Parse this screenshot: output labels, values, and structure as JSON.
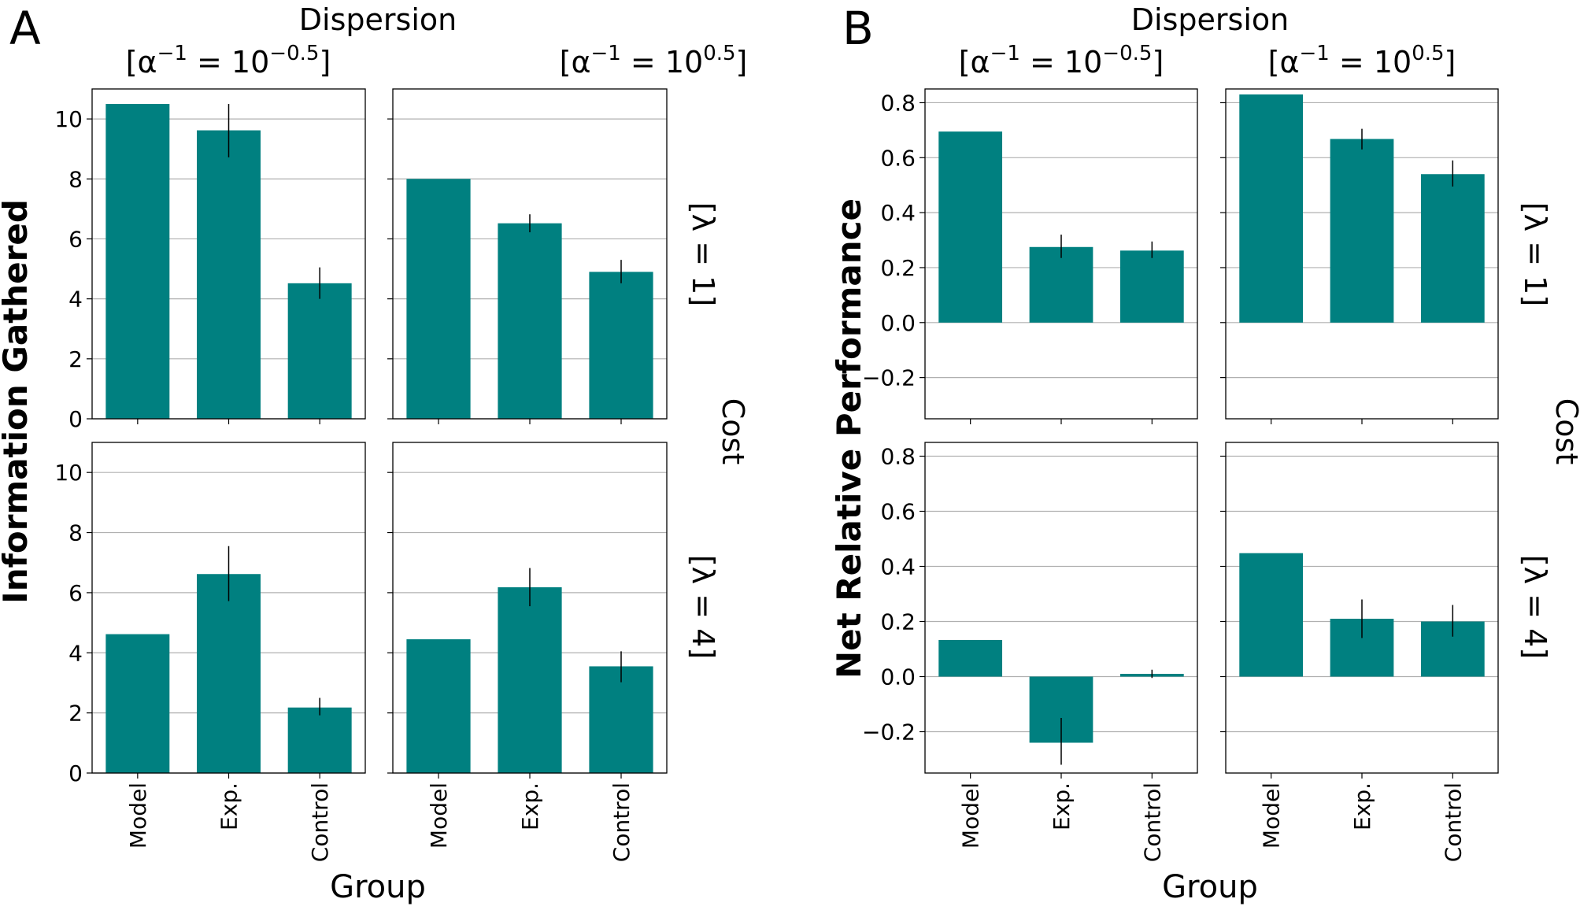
{
  "figure": {
    "panels": [
      {
        "letter": "A",
        "ylabel": "Information Gathered",
        "xlabel": "Group",
        "col_title": "Dispersion",
        "row_title": "Cost"
      },
      {
        "letter": "B",
        "ylabel": "Net Relative Performance",
        "xlabel": "Group",
        "col_title": "Dispersion",
        "row_title": "Cost"
      }
    ],
    "col_headers": [
      {
        "prefix": "[",
        "symbol": "α",
        "exp1": "−1",
        "mid": " = 10",
        "exp2": "−0.5",
        "suffix": "]"
      },
      {
        "prefix": "[",
        "symbol": "α",
        "exp1": "−1",
        "mid": " = 10",
        "exp2": "0.5",
        "suffix": "]"
      }
    ],
    "row_headers": [
      "[λ = 1]",
      "[λ = 4]"
    ],
    "bar_color": "#008080",
    "grid_color": "#b0b0b0"
  },
  "chart_data": [
    {
      "type": "bar",
      "panel": "A",
      "dispersion": "α^-1 = 10^-0.5",
      "cost": "λ = 1",
      "categories": [
        "Model",
        "Exp.",
        "Control"
      ],
      "values": [
        10.5,
        9.62,
        4.52
      ],
      "err_low": [
        10.5,
        8.72,
        4.0
      ],
      "err_high": [
        10.5,
        10.5,
        5.05
      ],
      "ylim": [
        0,
        11
      ],
      "yticks": [
        "0",
        "2",
        "4",
        "6",
        "8",
        "10"
      ],
      "grid": true
    },
    {
      "type": "bar",
      "panel": "A",
      "dispersion": "α^-1 = 10^0.5",
      "cost": "λ = 1",
      "categories": [
        "Model",
        "Exp.",
        "Control"
      ],
      "values": [
        8.0,
        6.52,
        4.9
      ],
      "err_low": [
        8.0,
        6.22,
        4.52
      ],
      "err_high": [
        8.0,
        6.82,
        5.3
      ],
      "ylim": [
        0,
        11
      ],
      "yticks": [],
      "grid": true
    },
    {
      "type": "bar",
      "panel": "A",
      "dispersion": "α^-1 = 10^-0.5",
      "cost": "λ = 4",
      "categories": [
        "Model",
        "Exp.",
        "Control"
      ],
      "values": [
        4.62,
        6.62,
        2.18
      ],
      "err_low": [
        4.62,
        5.72,
        1.92
      ],
      "err_high": [
        4.62,
        7.55,
        2.5
      ],
      "ylim": [
        0,
        11
      ],
      "yticks": [
        "0",
        "2",
        "4",
        "6",
        "8",
        "10"
      ],
      "grid": true
    },
    {
      "type": "bar",
      "panel": "A",
      "dispersion": "α^-1 = 10^0.5",
      "cost": "λ = 4",
      "categories": [
        "Model",
        "Exp.",
        "Control"
      ],
      "values": [
        4.45,
        6.18,
        3.55
      ],
      "err_low": [
        4.45,
        5.55,
        3.02
      ],
      "err_high": [
        4.45,
        6.82,
        4.05
      ],
      "ylim": [
        0,
        11
      ],
      "yticks": [],
      "grid": true
    },
    {
      "type": "bar",
      "panel": "B",
      "dispersion": "α^-1 = 10^-0.5",
      "cost": "λ = 1",
      "categories": [
        "Model",
        "Exp.",
        "Control"
      ],
      "values": [
        0.695,
        0.275,
        0.262
      ],
      "err_low": [
        0.695,
        0.235,
        0.235
      ],
      "err_high": [
        0.695,
        0.32,
        0.295
      ],
      "ylim": [
        -0.35,
        0.85
      ],
      "yticks": [
        "−0.2",
        "0.0",
        "0.2",
        "0.4",
        "0.6",
        "0.8"
      ],
      "grid": true
    },
    {
      "type": "bar",
      "panel": "B",
      "dispersion": "α^-1 = 10^0.5",
      "cost": "λ = 1",
      "categories": [
        "Model",
        "Exp.",
        "Control"
      ],
      "values": [
        0.83,
        0.668,
        0.54
      ],
      "err_low": [
        0.83,
        0.63,
        0.495
      ],
      "err_high": [
        0.83,
        0.705,
        0.59
      ],
      "ylim": [
        -0.35,
        0.85
      ],
      "yticks": [],
      "grid": true
    },
    {
      "type": "bar",
      "panel": "B",
      "dispersion": "α^-1 = 10^-0.5",
      "cost": "λ = 4",
      "categories": [
        "Model",
        "Exp.",
        "Control"
      ],
      "values": [
        0.133,
        -0.24,
        0.01
      ],
      "err_low": [
        0.133,
        -0.32,
        -0.005
      ],
      "err_high": [
        0.133,
        -0.15,
        0.025
      ],
      "ylim": [
        -0.35,
        0.85
      ],
      "yticks": [
        "−0.2",
        "0.0",
        "0.2",
        "0.4",
        "0.6",
        "0.8"
      ],
      "grid": true
    },
    {
      "type": "bar",
      "panel": "B",
      "dispersion": "α^-1 = 10^0.5",
      "cost": "λ = 4",
      "categories": [
        "Model",
        "Exp.",
        "Control"
      ],
      "values": [
        0.448,
        0.21,
        0.2
      ],
      "err_low": [
        0.448,
        0.14,
        0.145
      ],
      "err_high": [
        0.448,
        0.28,
        0.26
      ],
      "ylim": [
        -0.35,
        0.85
      ],
      "yticks": [],
      "grid": true
    }
  ]
}
